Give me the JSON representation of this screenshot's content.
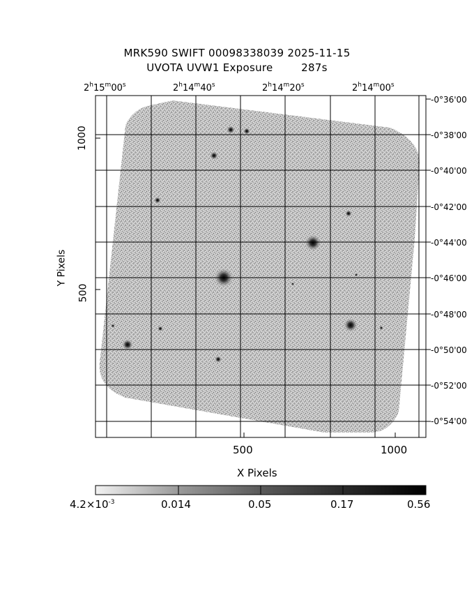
{
  "title": {
    "line1": "MRK590 SWIFT 00098338039 2025-11-15",
    "line2": "UVOTA UVW1 Exposure        287s"
  },
  "axes": {
    "xlabel": "X Pixels",
    "ylabel": "Y Pixels",
    "x_ticks": [
      "500",
      "1000"
    ],
    "y_ticks": [
      "1000",
      "500"
    ],
    "ra_ticks": [
      {
        "h": "2",
        "m": "15",
        "s": "00"
      },
      {
        "h": "2",
        "m": "14",
        "s": "40"
      },
      {
        "h": "2",
        "m": "14",
        "s": "20"
      },
      {
        "h": "2",
        "m": "14",
        "s": "00"
      }
    ],
    "dec_ticks": [
      "-0°36'00",
      "-0°38'00",
      "-0°40'00",
      "-0°42'00",
      "-0°44'00",
      "-0°46'00",
      "-0°48'00",
      "-0°50'00",
      "-0°52'00",
      "-0°54'00"
    ]
  },
  "colorbar": {
    "labels": [
      "4.2×10",
      "0.014",
      "0.05",
      "0.17",
      "0.56"
    ],
    "first_exp": "-3"
  }
}
